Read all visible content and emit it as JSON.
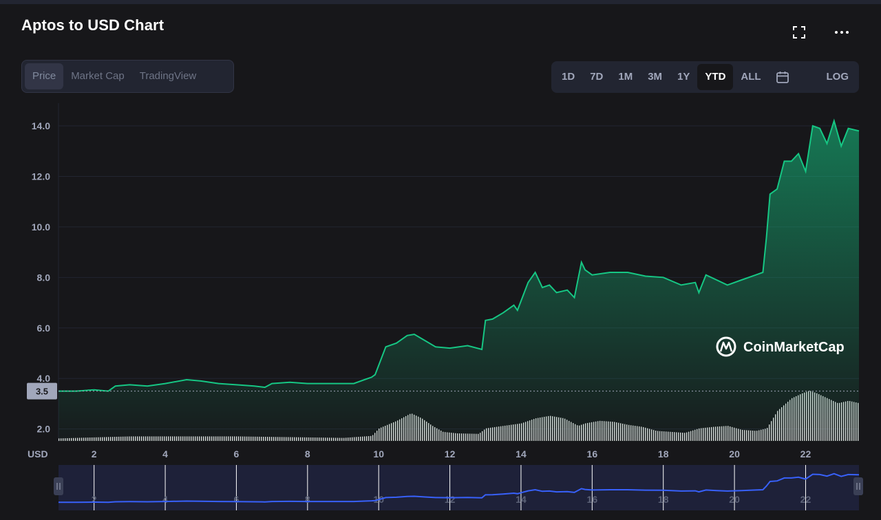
{
  "header": {
    "title": "Aptos to USD Chart",
    "fullscreen_icon": "fullscreen-icon",
    "more_icon": "more-horizontal-icon"
  },
  "tabs": [
    {
      "label": "Price",
      "active": true
    },
    {
      "label": "Market Cap",
      "active": false
    },
    {
      "label": "TradingView",
      "active": false
    }
  ],
  "ranges": [
    {
      "label": "1D",
      "active": false
    },
    {
      "label": "7D",
      "active": false
    },
    {
      "label": "1M",
      "active": false
    },
    {
      "label": "3M",
      "active": false
    },
    {
      "label": "1Y",
      "active": false
    },
    {
      "label": "YTD",
      "active": true
    },
    {
      "label": "ALL",
      "active": false
    }
  ],
  "calendar_icon": "calendar-icon",
  "log_label": "LOG",
  "watermark": "CoinMarketCap",
  "colors": {
    "line": "#16c784",
    "volume": "#ffffff",
    "navigator_line": "#3861fb",
    "background": "#17171a",
    "panel": "#222531"
  },
  "chart_data": {
    "type": "area",
    "ylabel": "USD",
    "ylim": [
      1.5,
      14.9
    ],
    "yticks": [
      "2.0",
      "4.0",
      "6.0",
      "8.0",
      "10.0",
      "12.0",
      "14.0"
    ],
    "xlim": [
      1.0,
      23.5
    ],
    "xticks": [
      "2",
      "4",
      "6",
      "8",
      "10",
      "12",
      "14",
      "16",
      "18",
      "20",
      "22"
    ],
    "price_marker": "3.5",
    "grid": true,
    "series": [
      {
        "x": [
          1.0,
          1.5,
          2.0,
          2.4,
          2.6,
          3.0,
          3.5,
          4.0,
          4.6,
          5.0,
          5.5,
          6.0,
          6.5,
          6.8,
          7.0,
          7.5,
          8.0,
          8.5,
          9.0,
          9.3,
          9.6,
          9.8,
          9.9,
          10.2,
          10.5,
          10.8,
          11.0,
          11.3,
          11.6,
          12.0,
          12.5,
          12.9,
          13.0,
          13.2,
          13.5,
          13.8,
          13.9,
          14.2,
          14.4,
          14.6,
          14.8,
          15.0,
          15.3,
          15.5,
          15.7,
          15.8,
          16.0,
          16.5,
          17.0,
          17.5,
          18.0,
          18.5,
          18.9,
          19.0,
          19.2,
          19.5,
          19.8,
          20.2,
          20.6,
          20.8,
          20.9,
          21.0,
          21.2,
          21.4,
          21.6,
          21.8,
          22.0,
          22.2,
          22.4,
          22.6,
          22.8,
          23.0,
          23.2,
          23.5
        ],
        "y": [
          3.5,
          3.5,
          3.55,
          3.5,
          3.7,
          3.75,
          3.7,
          3.8,
          3.95,
          3.9,
          3.8,
          3.75,
          3.7,
          3.65,
          3.8,
          3.85,
          3.8,
          3.8,
          3.8,
          3.8,
          3.95,
          4.05,
          4.15,
          5.25,
          5.4,
          5.7,
          5.75,
          5.5,
          5.25,
          5.2,
          5.3,
          5.15,
          6.3,
          6.35,
          6.6,
          6.9,
          6.7,
          7.8,
          8.2,
          7.6,
          7.7,
          7.4,
          7.5,
          7.2,
          8.6,
          8.3,
          8.1,
          8.2,
          8.2,
          8.05,
          8.0,
          7.7,
          7.8,
          7.4,
          8.1,
          7.9,
          7.7,
          7.9,
          8.1,
          8.2,
          9.6,
          11.3,
          11.5,
          12.6,
          12.6,
          12.9,
          12.2,
          14.0,
          13.9,
          13.3,
          14.2,
          13.2,
          13.9,
          13.8
        ]
      }
    ],
    "volume": {
      "x": [
        1.0,
        2.0,
        3.0,
        4.0,
        5.0,
        6.0,
        7.0,
        8.0,
        9.0,
        9.8,
        10.0,
        10.5,
        10.9,
        11.2,
        11.5,
        11.8,
        12.2,
        12.8,
        13.0,
        13.5,
        14.0,
        14.4,
        14.8,
        15.2,
        15.6,
        15.8,
        16.2,
        16.6,
        17.0,
        17.4,
        17.8,
        18.2,
        18.6,
        19.0,
        19.4,
        19.8,
        20.2,
        20.6,
        20.9,
        21.2,
        21.6,
        21.9,
        22.1,
        22.3,
        22.6,
        22.9,
        23.2,
        23.5
      ],
      "v": [
        0.05,
        0.07,
        0.09,
        0.09,
        0.09,
        0.09,
        0.08,
        0.07,
        0.06,
        0.1,
        0.25,
        0.4,
        0.55,
        0.45,
        0.3,
        0.18,
        0.15,
        0.14,
        0.25,
        0.3,
        0.35,
        0.45,
        0.5,
        0.45,
        0.3,
        0.35,
        0.4,
        0.38,
        0.32,
        0.28,
        0.2,
        0.18,
        0.16,
        0.25,
        0.28,
        0.3,
        0.22,
        0.2,
        0.25,
        0.6,
        0.85,
        0.95,
        1.0,
        0.95,
        0.85,
        0.75,
        0.8,
        0.75
      ]
    }
  }
}
